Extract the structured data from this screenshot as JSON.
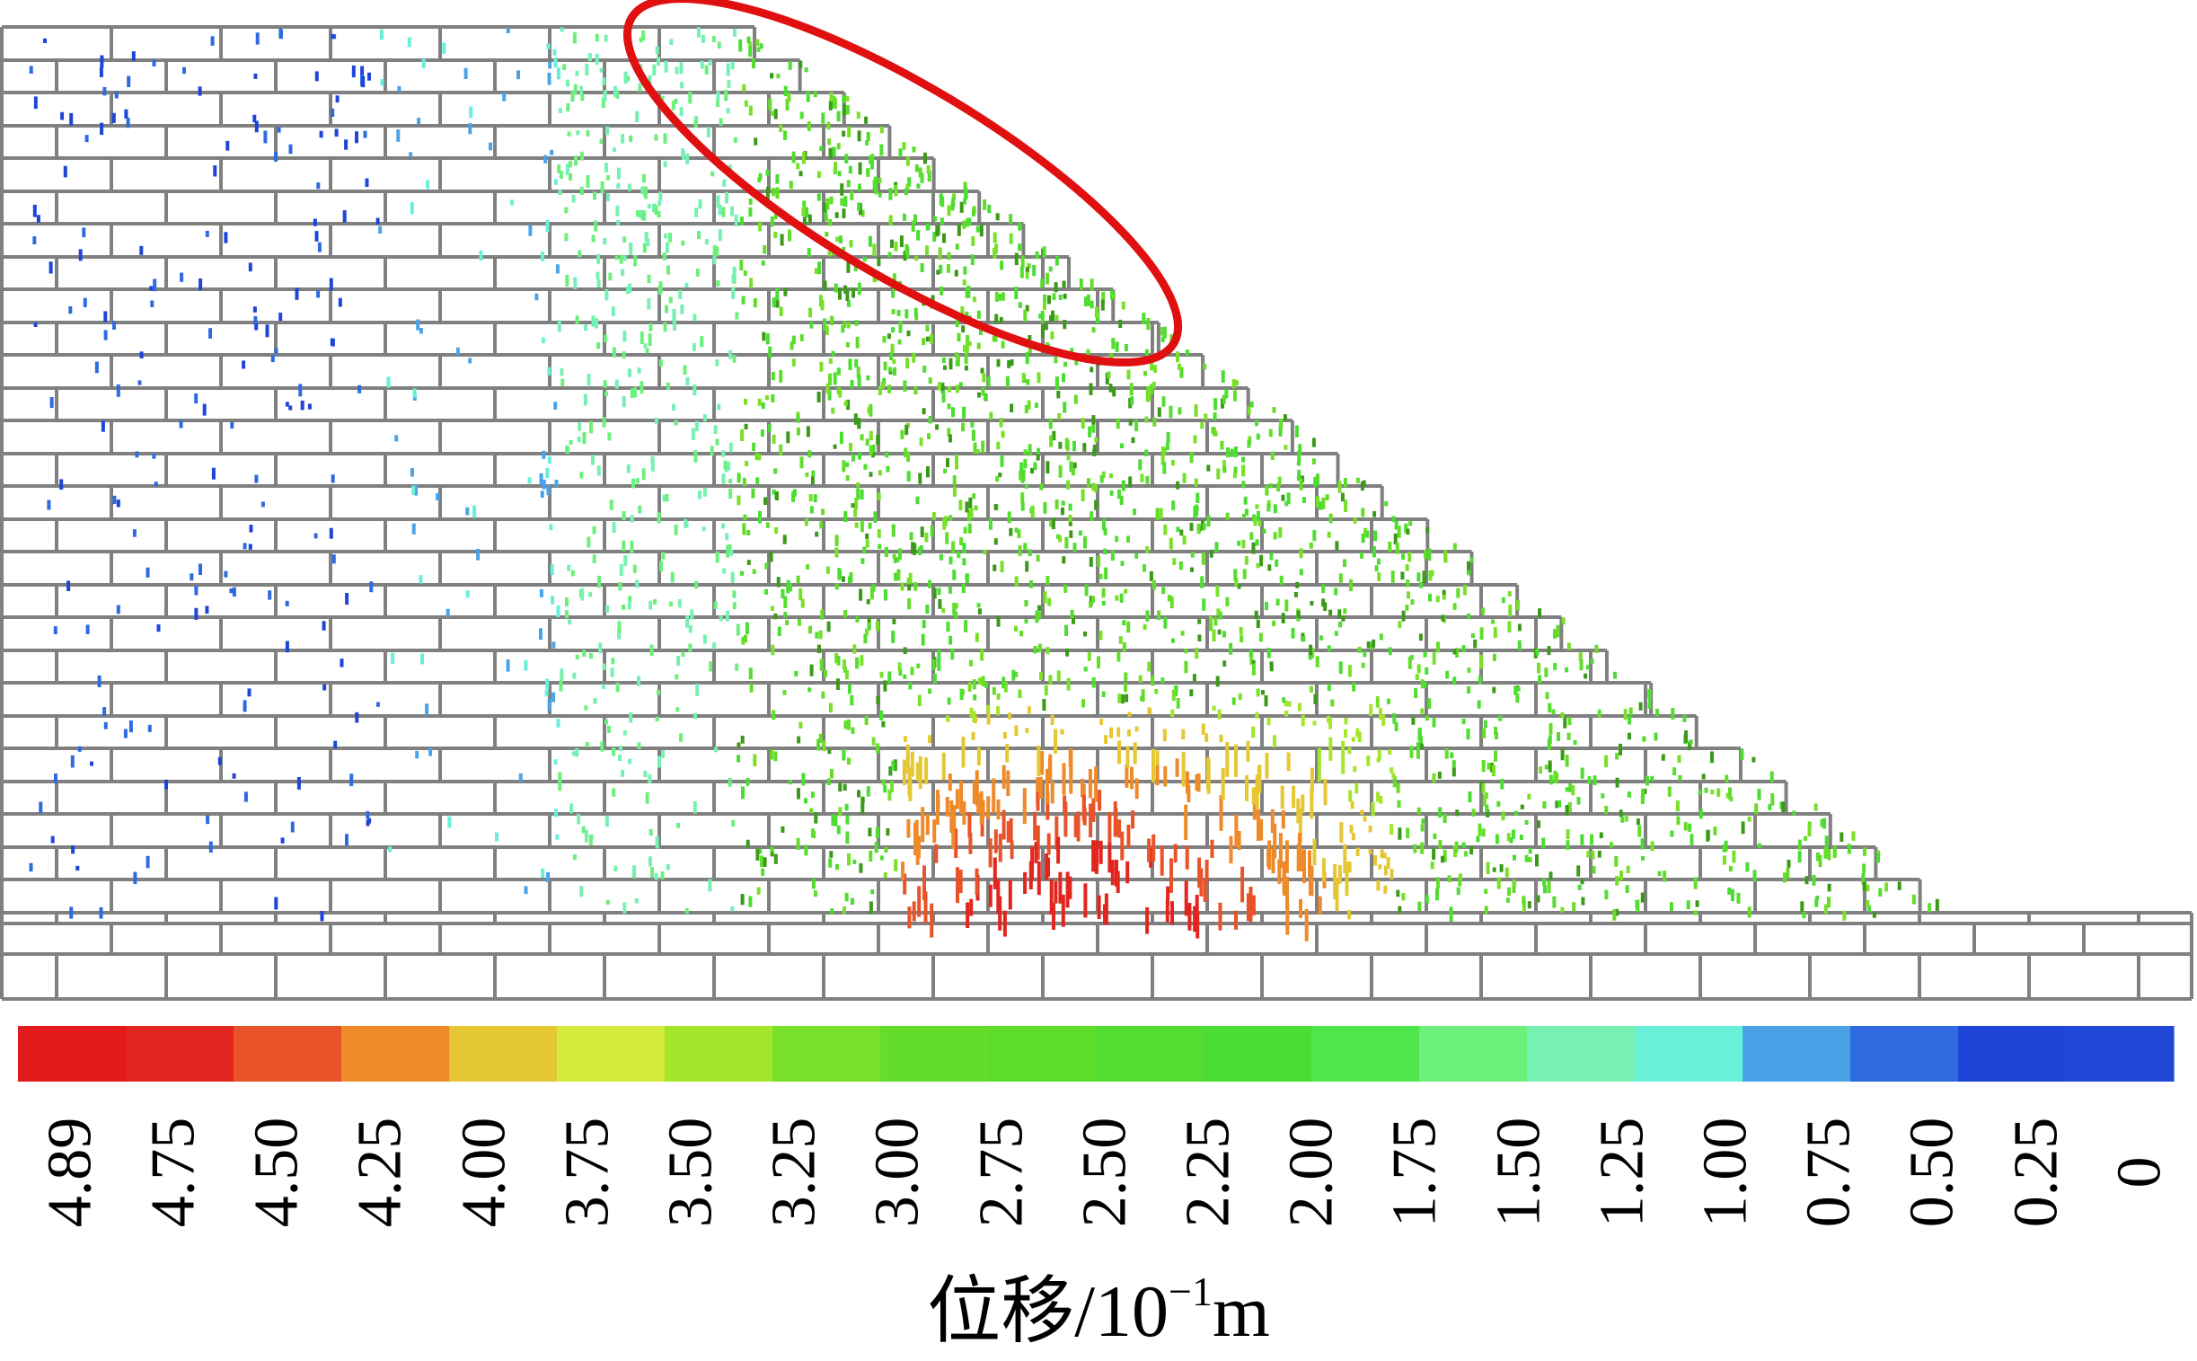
{
  "legend": {
    "title_main": "位移/10",
    "title_sup": "−1",
    "title_unit": "m",
    "ticks": [
      "4.89",
      "4.75",
      "4.50",
      "4.25",
      "4.00",
      "3.75",
      "3.50",
      "3.25",
      "3.00",
      "2.75",
      "2.50",
      "2.25",
      "2.00",
      "1.75",
      "1.50",
      "1.25",
      "1.00",
      "0.75",
      "0.50",
      "0.25",
      "0"
    ],
    "colors": [
      "#e31a1c",
      "#e2261f",
      "#e8532a",
      "#ee8a2a",
      "#e5c734",
      "#d6ec3d",
      "#a3e62b",
      "#79e02a",
      "#63dd29",
      "#5ddd29",
      "#52dd30",
      "#4add33",
      "#4ee64a",
      "#6cf07c",
      "#77f0b4",
      "#68f0d8",
      "#4aa3e8",
      "#2e6be0",
      "#1f45d8",
      "#2048d6"
    ]
  },
  "colors": {
    "block_outline": "#808080",
    "highlight_ellipse": "#e01010"
  }
}
